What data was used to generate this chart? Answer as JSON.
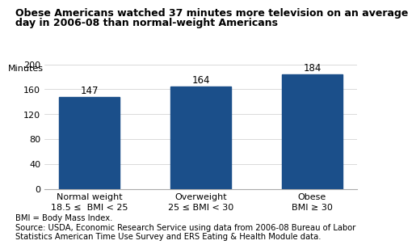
{
  "title_line1": "Obese Americans watched 37 minutes more television on an average",
  "title_line2": "day in 2006-08 than normal-weight Americans",
  "ylabel": "Minutes",
  "categories": [
    "Normal weight\n18.5 ≤  BMI < 25",
    "Overweight\n25 ≤ BMI < 30",
    "Obese\nBMI ≥ 30"
  ],
  "values": [
    147,
    164,
    184
  ],
  "bar_color": "#1B4F8A",
  "ylim": [
    0,
    200
  ],
  "yticks": [
    0,
    40,
    80,
    120,
    160,
    200
  ],
  "footnote1": "BMI = Body Mass Index.",
  "footnote2": "Source: USDA, Economic Research Service using data from 2006-08 Bureau of Labor",
  "footnote3": "Statistics American Time Use Survey and ERS Eating & Health Module data.",
  "title_fontsize": 9.0,
  "label_fontsize": 8.0,
  "tick_fontsize": 8.0,
  "footnote_fontsize": 7.2,
  "value_label_fontsize": 8.5
}
